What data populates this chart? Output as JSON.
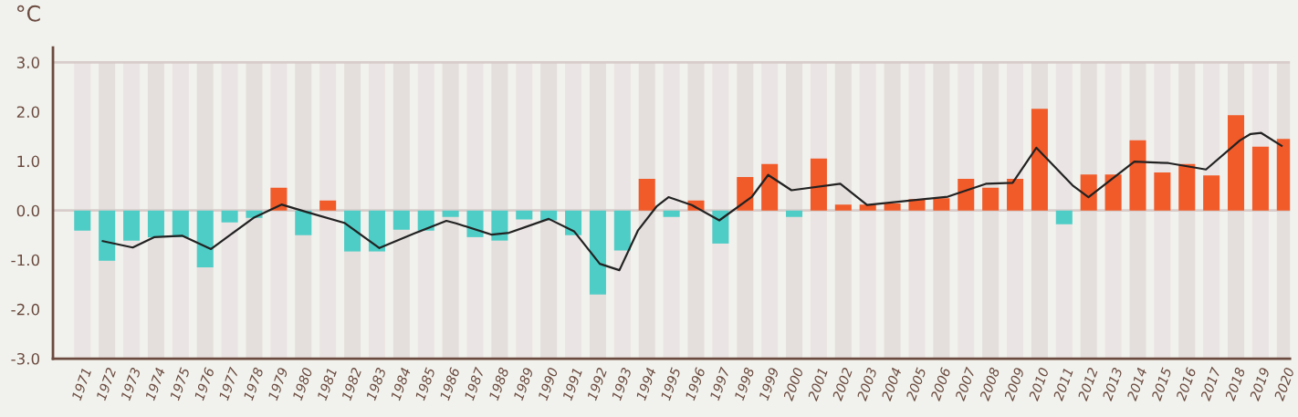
{
  "chart_data": {
    "type": "bar",
    "ylabel": "°C",
    "x": [
      1971,
      1972,
      1973,
      1974,
      1975,
      1976,
      1977,
      1978,
      1979,
      1980,
      1981,
      1982,
      1983,
      1984,
      1985,
      1986,
      1987,
      1988,
      1989,
      1990,
      1991,
      1992,
      1993,
      1994,
      1995,
      1996,
      1997,
      1998,
      1999,
      2000,
      2001,
      2002,
      2003,
      2004,
      2005,
      2006,
      2007,
      2008,
      2009,
      2010,
      2011,
      2012,
      2013,
      2014,
      2015,
      2016,
      2017,
      2018,
      2019,
      2020
    ],
    "series": [
      {
        "values": [
          -0.41,
          -1.02,
          -0.61,
          -0.54,
          -0.54,
          -1.15,
          -0.24,
          -0.15,
          0.46,
          -0.5,
          0.2,
          -0.83,
          -0.83,
          -0.39,
          -0.41,
          -0.13,
          -0.54,
          -0.61,
          -0.18,
          -0.2,
          -0.5,
          -1.7,
          -0.81,
          0.64,
          -0.13,
          0.2,
          -0.67,
          0.68,
          0.94,
          -0.13,
          1.05,
          0.12,
          0.12,
          0.14,
          0.23,
          0.25,
          0.64,
          0.46,
          0.64,
          2.06,
          -0.28,
          0.73,
          0.73,
          1.42,
          0.77,
          0.94,
          0.71,
          1.93,
          1.29,
          1.45
        ],
        "colors": [
          "#4ecdc6",
          "#4ecdc6",
          "#4ecdc6",
          "#4ecdc6",
          "#4ecdc6",
          "#4ecdc6",
          "#4ecdc6",
          "#4ecdc6",
          "#f15a29",
          "#4ecdc6",
          "#f15a29",
          "#4ecdc6",
          "#4ecdc6",
          "#4ecdc6",
          "#4ecdc6",
          "#4ecdc6",
          "#4ecdc6",
          "#4ecdc6",
          "#4ecdc6",
          "#4ecdc6",
          "#4ecdc6",
          "#4ecdc6",
          "#4ecdc6",
          "#f15a29",
          "#4ecdc6",
          "#f15a29",
          "#4ecdc6",
          "#f15a29",
          "#f15a29",
          "#4ecdc6",
          "#f15a29",
          "#f15a29",
          "#f15a29",
          "#f15a29",
          "#f15a29",
          "#f15a29",
          "#f15a29",
          "#f15a29",
          "#f15a29",
          "#f15a29",
          "#4ecdc6",
          "#f15a29",
          "#f15a29",
          "#f15a29",
          "#f15a29",
          "#f15a29",
          "#f15a29",
          "#f15a29",
          "#f15a29",
          "#f15a29"
        ]
      },
      {
        "type": "line",
        "color": "#222222",
        "x": [
          1971.83,
          1973.05,
          1973.92,
          1975.06,
          1976.24,
          1977.97,
          1979.11,
          1980.2,
          1981.67,
          1983.1,
          1984.55,
          1985.83,
          1986.22,
          1987.68,
          1988.39,
          1990.0,
          1991.03,
          1992.08,
          1992.88,
          1993.64,
          1994.41,
          1994.88,
          1995.83,
          1996.95,
          1998.28,
          1998.94,
          1999.89,
          2001.88,
          2002.97,
          2006.26,
          2007.81,
          2008.9,
          2009.87,
          2011.34,
          2011.99,
          2013.86,
          2015.25,
          2016.78,
          2018.16,
          2018.6,
          2019.03,
          2019.86
        ],
        "values": [
          -0.62,
          -0.75,
          -0.54,
          -0.51,
          -0.78,
          -0.15,
          0.12,
          -0.04,
          -0.25,
          -0.76,
          -0.46,
          -0.21,
          -0.26,
          -0.49,
          -0.45,
          -0.17,
          -0.42,
          -1.08,
          -1.21,
          -0.4,
          0.09,
          0.27,
          0.11,
          -0.2,
          0.28,
          0.72,
          0.41,
          0.54,
          0.11,
          0.28,
          0.54,
          0.56,
          1.27,
          0.51,
          0.27,
          0.99,
          0.96,
          0.83,
          1.42,
          1.55,
          1.57,
          1.31
        ]
      }
    ],
    "xlim": [
      1969.8,
      2020.2
    ],
    "xticks": [
      1971,
      1972,
      1973,
      1974,
      1975,
      1976,
      1977,
      1978,
      1979,
      1980,
      1981,
      1982,
      1983,
      1984,
      1985,
      1986,
      1987,
      1988,
      1989,
      1990,
      1991,
      1992,
      1993,
      1994,
      1995,
      1996,
      1997,
      1998,
      1999,
      2000,
      2001,
      2002,
      2003,
      2004,
      2005,
      2006,
      2007,
      2008,
      2009,
      2010,
      2011,
      2012,
      2013,
      2014,
      2015,
      2016,
      2017,
      2018,
      2019,
      2020
    ],
    "ylim": [
      -3,
      3.3
    ],
    "yticks": [
      {
        "value": -3,
        "label": "-3.0"
      },
      {
        "value": -2,
        "label": "-2.0"
      },
      {
        "value": -1,
        "label": "-1.0"
      },
      {
        "value": 0,
        "label": "0.0"
      },
      {
        "value": 1,
        "label": "1.0"
      },
      {
        "value": 2,
        "label": "2.0"
      },
      {
        "value": 3,
        "label": "3.0"
      }
    ],
    "ref_lines": [
      {
        "axis": "y",
        "value": 3,
        "color": "#d8cdca"
      },
      {
        "axis": "y",
        "value": 0,
        "color": "#d8cdca"
      }
    ],
    "grid": false,
    "legend": false,
    "marker": "none",
    "line_style": "solid"
  }
}
